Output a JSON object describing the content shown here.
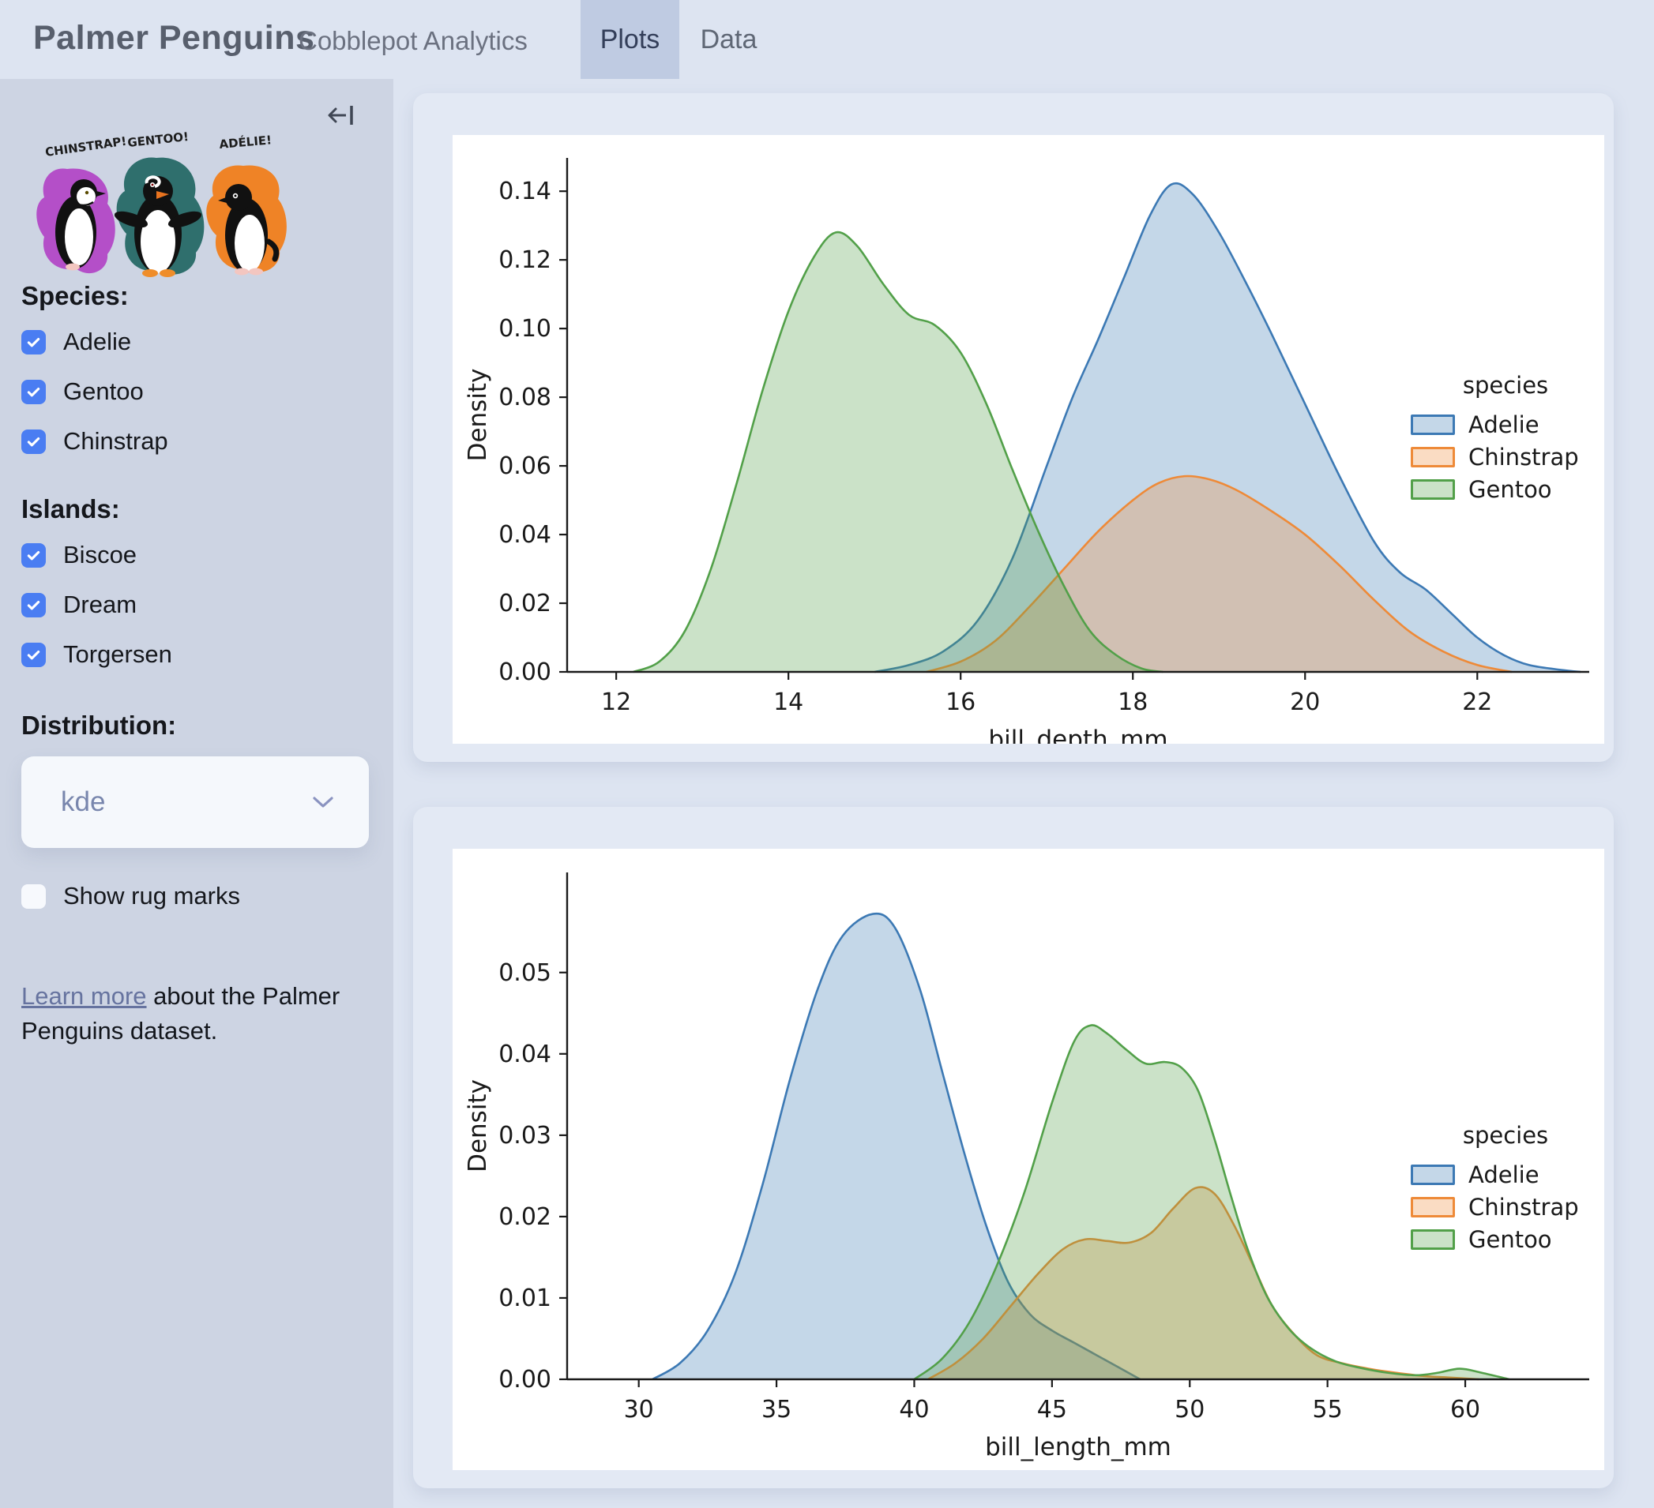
{
  "header": {
    "title": "Palmer Penguins",
    "subtitle": "Cobblepot Analytics",
    "tabs": [
      {
        "label": "Plots",
        "active": true
      },
      {
        "label": "Data",
        "active": false
      }
    ]
  },
  "sidebar": {
    "artwork_labels": [
      "CHINSTRAP!",
      "GENTOO!",
      "ADÉLIE!"
    ],
    "species": {
      "label": "Species:",
      "options": [
        {
          "label": "Adelie",
          "checked": true
        },
        {
          "label": "Gentoo",
          "checked": true
        },
        {
          "label": "Chinstrap",
          "checked": true
        }
      ]
    },
    "islands": {
      "label": "Islands:",
      "options": [
        {
          "label": "Biscoe",
          "checked": true
        },
        {
          "label": "Dream",
          "checked": true
        },
        {
          "label": "Torgersen",
          "checked": true
        }
      ]
    },
    "distribution": {
      "label": "Distribution:",
      "value": "kde"
    },
    "rug": {
      "label": "Show rug marks",
      "checked": false
    },
    "learn_more": {
      "link": "Learn more",
      "rest": " about the Palmer Penguins dataset."
    }
  },
  "colors": {
    "adelie": "#3c79b4",
    "chinstrap": "#ee8a38",
    "gentoo": "#52a049",
    "fill_opacity": 0.3,
    "checkbox_blue": "#4a7df2",
    "axis": "#1a1a1a"
  },
  "chart_data": [
    {
      "type": "area",
      "kind": "kde-density",
      "xlabel": "bill_depth_mm",
      "ylabel": "Density",
      "xlim": [
        11.43,
        23.3
      ],
      "ylim": [
        0,
        0.1497
      ],
      "xticks": [
        12,
        14,
        16,
        18,
        20,
        22
      ],
      "yticks": [
        0.0,
        0.02,
        0.04,
        0.06,
        0.08,
        0.1,
        0.12,
        0.14
      ],
      "ytick_decimals": 2,
      "legend": {
        "title": "species",
        "entries": [
          "Adelie",
          "Chinstrap",
          "Gentoo"
        ]
      },
      "series": [
        {
          "name": "Adelie",
          "color_key": "adelie",
          "points": [
            [
              15.0,
              0
            ],
            [
              15.4,
              0.002
            ],
            [
              15.8,
              0.006
            ],
            [
              16.2,
              0.015
            ],
            [
              16.6,
              0.033
            ],
            [
              17.0,
              0.06
            ],
            [
              17.3,
              0.08
            ],
            [
              17.6,
              0.097
            ],
            [
              17.9,
              0.115
            ],
            [
              18.2,
              0.133
            ],
            [
              18.45,
              0.142
            ],
            [
              18.7,
              0.139
            ],
            [
              19.0,
              0.128
            ],
            [
              19.3,
              0.114
            ],
            [
              19.6,
              0.099
            ],
            [
              20.0,
              0.078
            ],
            [
              20.4,
              0.057
            ],
            [
              20.8,
              0.038
            ],
            [
              21.1,
              0.029
            ],
            [
              21.4,
              0.024
            ],
            [
              21.7,
              0.017
            ],
            [
              22.0,
              0.01
            ],
            [
              22.3,
              0.005
            ],
            [
              22.6,
              0.002
            ],
            [
              23.0,
              0.0005
            ],
            [
              23.2,
              0
            ]
          ]
        },
        {
          "name": "Chinstrap",
          "color_key": "chinstrap",
          "points": [
            [
              15.6,
              0
            ],
            [
              16.0,
              0.003
            ],
            [
              16.4,
              0.009
            ],
            [
              16.8,
              0.019
            ],
            [
              17.2,
              0.03
            ],
            [
              17.6,
              0.041
            ],
            [
              18.0,
              0.05
            ],
            [
              18.3,
              0.055
            ],
            [
              18.6,
              0.057
            ],
            [
              18.9,
              0.056
            ],
            [
              19.2,
              0.053
            ],
            [
              19.6,
              0.047
            ],
            [
              20.0,
              0.04
            ],
            [
              20.4,
              0.031
            ],
            [
              20.8,
              0.021
            ],
            [
              21.2,
              0.012
            ],
            [
              21.6,
              0.006
            ],
            [
              22.0,
              0.002
            ],
            [
              22.4,
              0
            ]
          ]
        },
        {
          "name": "Gentoo",
          "color_key": "gentoo",
          "points": [
            [
              12.2,
              0
            ],
            [
              12.5,
              0.003
            ],
            [
              12.8,
              0.012
            ],
            [
              13.1,
              0.03
            ],
            [
              13.4,
              0.055
            ],
            [
              13.7,
              0.082
            ],
            [
              14.0,
              0.105
            ],
            [
              14.3,
              0.121
            ],
            [
              14.55,
              0.128
            ],
            [
              14.8,
              0.124
            ],
            [
              15.1,
              0.113
            ],
            [
              15.4,
              0.104
            ],
            [
              15.7,
              0.101
            ],
            [
              16.0,
              0.093
            ],
            [
              16.3,
              0.078
            ],
            [
              16.6,
              0.059
            ],
            [
              16.9,
              0.041
            ],
            [
              17.2,
              0.025
            ],
            [
              17.5,
              0.012
            ],
            [
              17.8,
              0.005
            ],
            [
              18.1,
              0.001
            ],
            [
              18.35,
              0
            ]
          ]
        }
      ]
    },
    {
      "type": "area",
      "kind": "kde-density",
      "xlabel": "bill_length_mm",
      "ylabel": "Density",
      "xlim": [
        27.4,
        64.5
      ],
      "ylim": [
        0,
        0.0623
      ],
      "xticks": [
        30,
        35,
        40,
        45,
        50,
        55,
        60
      ],
      "yticks": [
        0.0,
        0.01,
        0.02,
        0.03,
        0.04,
        0.05
      ],
      "ytick_decimals": 2,
      "legend": {
        "title": "species",
        "entries": [
          "Adelie",
          "Chinstrap",
          "Gentoo"
        ]
      },
      "series": [
        {
          "name": "Adelie",
          "color_key": "adelie",
          "points": [
            [
              30.5,
              0
            ],
            [
              31.5,
              0.002
            ],
            [
              32.5,
              0.006
            ],
            [
              33.5,
              0.013
            ],
            [
              34.5,
              0.024
            ],
            [
              35.5,
              0.037
            ],
            [
              36.5,
              0.048
            ],
            [
              37.4,
              0.0545
            ],
            [
              38.5,
              0.0572
            ],
            [
              39.3,
              0.0555
            ],
            [
              40.2,
              0.048
            ],
            [
              41.0,
              0.038
            ],
            [
              41.8,
              0.028
            ],
            [
              42.6,
              0.019
            ],
            [
              43.4,
              0.012
            ],
            [
              44.2,
              0.008
            ],
            [
              45.0,
              0.006
            ],
            [
              45.8,
              0.0045
            ],
            [
              46.6,
              0.003
            ],
            [
              47.4,
              0.0015
            ],
            [
              48.2,
              0
            ]
          ]
        },
        {
          "name": "Chinstrap",
          "color_key": "chinstrap",
          "points": [
            [
              40.5,
              0
            ],
            [
              41.5,
              0.002
            ],
            [
              42.5,
              0.005
            ],
            [
              43.5,
              0.009
            ],
            [
              44.5,
              0.013
            ],
            [
              45.4,
              0.016
            ],
            [
              46.2,
              0.0172
            ],
            [
              47.0,
              0.017
            ],
            [
              47.8,
              0.0168
            ],
            [
              48.6,
              0.018
            ],
            [
              49.4,
              0.021
            ],
            [
              50.2,
              0.0235
            ],
            [
              50.9,
              0.0228
            ],
            [
              51.6,
              0.019
            ],
            [
              52.3,
              0.014
            ],
            [
              53.0,
              0.009
            ],
            [
              53.8,
              0.0055
            ],
            [
              54.6,
              0.003
            ],
            [
              55.5,
              0.002
            ],
            [
              56.5,
              0.0013
            ],
            [
              57.5,
              0.0008
            ],
            [
              58.5,
              0.0004
            ],
            [
              59.5,
              0.0002
            ],
            [
              60.5,
              0
            ]
          ]
        },
        {
          "name": "Gentoo",
          "color_key": "gentoo",
          "points": [
            [
              40.0,
              0
            ],
            [
              41.0,
              0.0025
            ],
            [
              42.0,
              0.007
            ],
            [
              43.0,
              0.014
            ],
            [
              44.0,
              0.023
            ],
            [
              45.0,
              0.034
            ],
            [
              45.8,
              0.0415
            ],
            [
              46.4,
              0.0435
            ],
            [
              47.0,
              0.0425
            ],
            [
              47.7,
              0.0405
            ],
            [
              48.4,
              0.0388
            ],
            [
              49.1,
              0.039
            ],
            [
              49.7,
              0.0383
            ],
            [
              50.3,
              0.0355
            ],
            [
              50.9,
              0.0295
            ],
            [
              51.5,
              0.0225
            ],
            [
              52.1,
              0.016
            ],
            [
              52.8,
              0.0102
            ],
            [
              53.6,
              0.0062
            ],
            [
              54.4,
              0.0038
            ],
            [
              55.3,
              0.0022
            ],
            [
              56.2,
              0.0014
            ],
            [
              57.2,
              0.0008
            ],
            [
              58.2,
              0.0005
            ],
            [
              59.0,
              0.0008
            ],
            [
              59.8,
              0.0013
            ],
            [
              60.6,
              0.0008
            ],
            [
              61.6,
              0
            ]
          ]
        }
      ]
    }
  ]
}
